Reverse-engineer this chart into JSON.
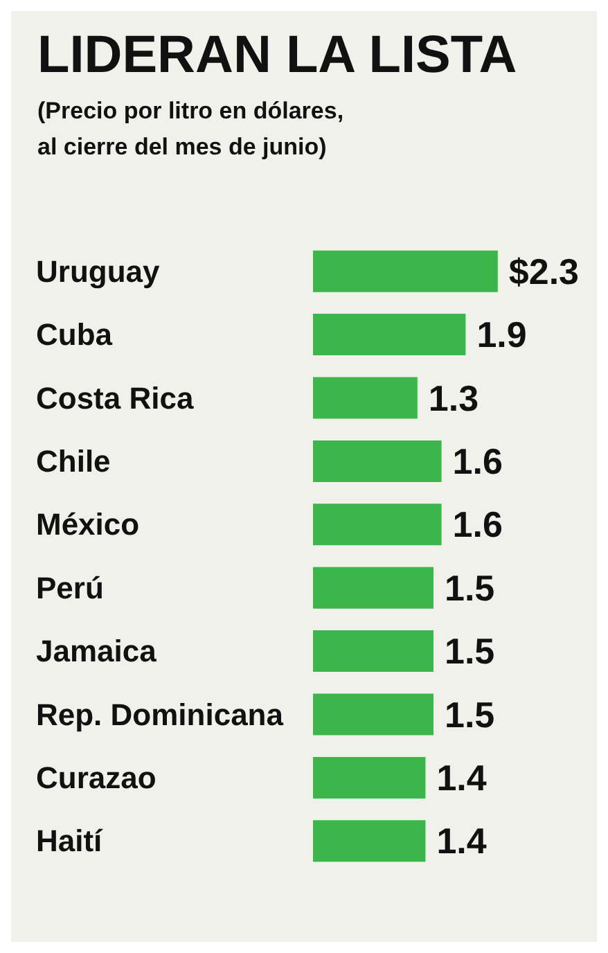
{
  "chart_data": {
    "type": "bar",
    "orientation": "horizontal",
    "title": "LIDERAN LA LISTA",
    "subtitle": "(Precio por litro en dólares,\nal cierre del mes de junio)",
    "categories": [
      "Uruguay",
      "Cuba",
      "Costa Rica",
      "Chile",
      "México",
      "Perú",
      "Jamaica",
      "Rep. Dominicana",
      "Curazao",
      "Haití"
    ],
    "values": [
      2.3,
      1.9,
      1.3,
      1.6,
      1.6,
      1.5,
      1.5,
      1.5,
      1.4,
      1.4
    ],
    "value_labels": [
      "$2.3",
      "1.9",
      "1.3",
      "1.6",
      "1.6",
      "1.5",
      "1.5",
      "1.5",
      "1.4",
      "1.4"
    ],
    "color": "#3cb54a"
  }
}
